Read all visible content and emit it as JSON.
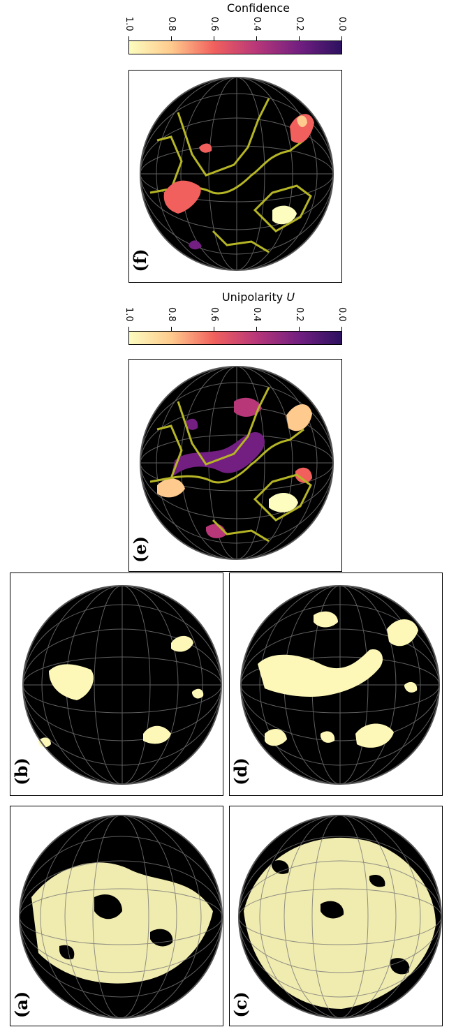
{
  "panels": {
    "a": {
      "label": "(a)"
    },
    "b": {
      "label": "(b)"
    },
    "c": {
      "label": "(c)"
    },
    "d": {
      "label": "(d)"
    },
    "e": {
      "label": "(e)"
    },
    "f": {
      "label": "(f)"
    }
  },
  "colorbars": {
    "confidence": {
      "title": "Confidence",
      "ticks": [
        "1.0",
        "0.8",
        "0.6",
        "0.4",
        "0.2",
        "0.0"
      ]
    },
    "unipolarity": {
      "title": "Unipolarity",
      "symbol": "U",
      "ticks": [
        "1.0",
        "0.8",
        "0.6",
        "0.4",
        "0.2",
        "0.0"
      ]
    }
  },
  "colors": {
    "disk": "#000000",
    "grid": "#8a8a8a",
    "mask": "#fdf8b8",
    "contour": "#b5b526",
    "cmap": [
      "#fcfdbf",
      "#feca8d",
      "#f1605d",
      "#b73779",
      "#721f81",
      "#2c115f"
    ]
  }
}
